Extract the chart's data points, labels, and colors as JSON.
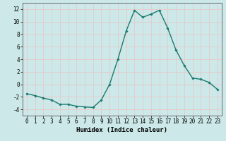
{
  "x": [
    0,
    1,
    2,
    3,
    4,
    5,
    6,
    7,
    8,
    9,
    10,
    11,
    12,
    13,
    14,
    15,
    16,
    17,
    18,
    19,
    20,
    21,
    22,
    23
  ],
  "y": [
    -1.5,
    -1.8,
    -2.2,
    -2.5,
    -3.2,
    -3.2,
    -3.5,
    -3.6,
    -3.7,
    -2.5,
    0.0,
    4.0,
    8.5,
    11.8,
    10.7,
    11.2,
    11.8,
    9.0,
    5.5,
    3.0,
    1.0,
    0.8,
    0.3,
    -0.8
  ],
  "line_color": "#1a7a6e",
  "marker": "D",
  "marker_size": 1.8,
  "line_width": 1.0,
  "xlabel": "Humidex (Indice chaleur)",
  "xlabel_fontsize": 6.5,
  "xlim": [
    -0.5,
    23.5
  ],
  "ylim": [
    -5,
    13
  ],
  "yticks": [
    -4,
    -2,
    0,
    2,
    4,
    6,
    8,
    10,
    12
  ],
  "xticks": [
    0,
    1,
    2,
    3,
    4,
    5,
    6,
    7,
    8,
    9,
    10,
    11,
    12,
    13,
    14,
    15,
    16,
    17,
    18,
    19,
    20,
    21,
    22,
    23
  ],
  "tick_fontsize": 5.5,
  "bg_color": "#cce8e8",
  "grid_color": "#e8c8c8",
  "grid_linewidth": 0.6,
  "axes_edge_color": "#555555"
}
